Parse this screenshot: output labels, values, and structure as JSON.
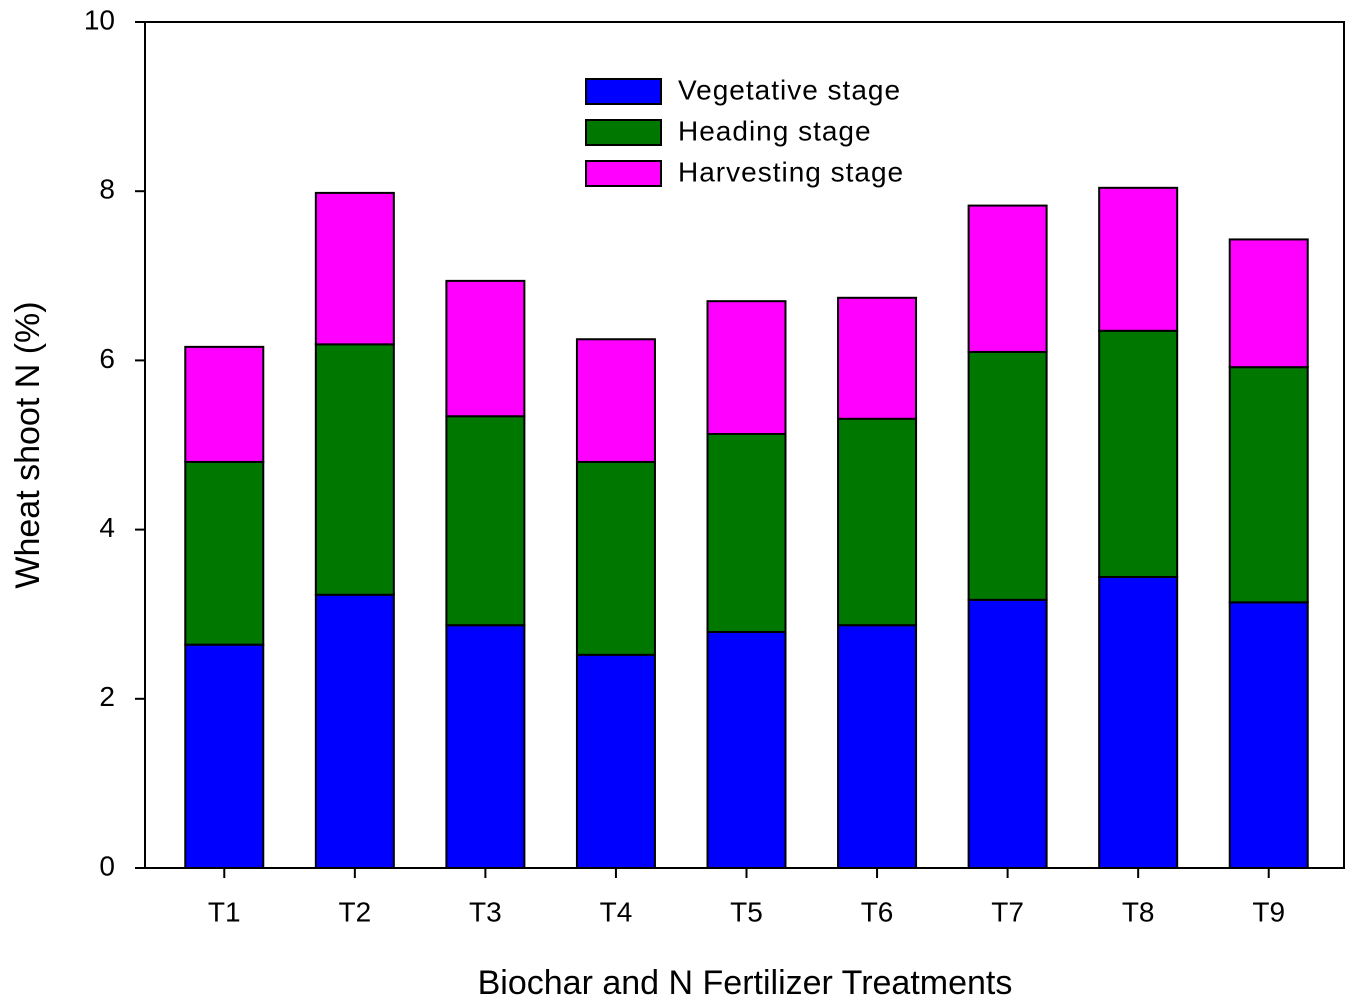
{
  "chart_data": {
    "type": "stacked_bar",
    "xlabel": "Biochar and N Fertilizer Treatments",
    "ylabel": "Wheat shoot N (%)",
    "categories": [
      "T1",
      "T2",
      "T3",
      "T4",
      "T5",
      "T6",
      "T7",
      "T8",
      "T9"
    ],
    "series": [
      {
        "name": "Vegetative stage",
        "color": "#0000ff",
        "values": [
          2.64,
          3.23,
          2.87,
          2.52,
          2.79,
          2.87,
          3.17,
          3.44,
          3.14
        ]
      },
      {
        "name": "Heading stage",
        "color": "#007800",
        "values": [
          2.16,
          2.96,
          2.47,
          2.28,
          2.34,
          2.44,
          2.93,
          2.91,
          2.78
        ]
      },
      {
        "name": "Harvesting stage",
        "color": "#ff00ff",
        "values": [
          1.36,
          1.79,
          1.6,
          1.45,
          1.57,
          1.43,
          1.73,
          1.69,
          1.51
        ]
      }
    ],
    "ylim": [
      0,
      10
    ],
    "yticks": [
      0,
      2,
      4,
      6,
      8,
      10
    ],
    "grid": false,
    "legend": "top"
  }
}
